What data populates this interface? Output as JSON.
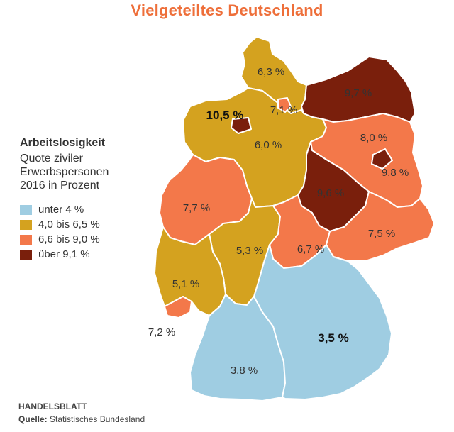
{
  "title": "Vielgeteiltes Deutschland",
  "legend": {
    "heading": "Arbeitslosigkeit",
    "subtitle_lines": [
      "Quote ziviler",
      "Erwerbspersonen",
      "2016 in Prozent"
    ],
    "items": [
      {
        "label": "unter 4 %",
        "color": "#9fcde2"
      },
      {
        "label": "4,0 bis 6,5 %",
        "color": "#d4a21f"
      },
      {
        "label": "6,6 bis 9,0 %",
        "color": "#f3784a"
      },
      {
        "label": "über 9,1 %",
        "color": "#7a1f0c"
      }
    ]
  },
  "regions": [
    {
      "name": "Schleswig-Holstein",
      "value": "6,3 %",
      "category": "4,0 bis 6,5 %"
    },
    {
      "name": "Hamburg",
      "value": "7,1 %",
      "category": "6,6 bis 9,0 %"
    },
    {
      "name": "Mecklenburg-Vorpommern",
      "value": "9,7 %",
      "category": "über 9,1 %"
    },
    {
      "name": "Bremen",
      "value": "10,5 %",
      "category": "über 9,1 %"
    },
    {
      "name": "Niedersachsen",
      "value": "6,0 %",
      "category": "4,0 bis 6,5 %"
    },
    {
      "name": "Brandenburg",
      "value": "8,0 %",
      "category": "6,6 bis 9,0 %"
    },
    {
      "name": "Berlin",
      "value": "9,8 %",
      "category": "über 9,1 %"
    },
    {
      "name": "Sachsen-Anhalt",
      "value": "9,6 %",
      "category": "über 9,1 %"
    },
    {
      "name": "Nordrhein-Westfalen",
      "value": "7,7 %",
      "category": "6,6 bis 9,0 %"
    },
    {
      "name": "Hessen",
      "value": "5,3 %",
      "category": "4,0 bis 6,5 %"
    },
    {
      "name": "Thüringen",
      "value": "6,7 %",
      "category": "6,6 bis 9,0 %"
    },
    {
      "name": "Sachsen",
      "value": "7,5 %",
      "category": "6,6 bis 9,0 %"
    },
    {
      "name": "Rheinland-Pfalz",
      "value": "5,1 %",
      "category": "4,0 bis 6,5 %"
    },
    {
      "name": "Saarland",
      "value": "7,2 %",
      "category": "6,6 bis 9,0 %"
    },
    {
      "name": "Baden-Württemberg",
      "value": "3,8 %",
      "category": "unter 4 %"
    },
    {
      "name": "Bayern",
      "value": "3,5 %",
      "category": "unter 4 %"
    }
  ],
  "publisher": "HANDELSBLATT",
  "source_label": "Quelle:",
  "source_text": "Statistisches Bundesland"
}
